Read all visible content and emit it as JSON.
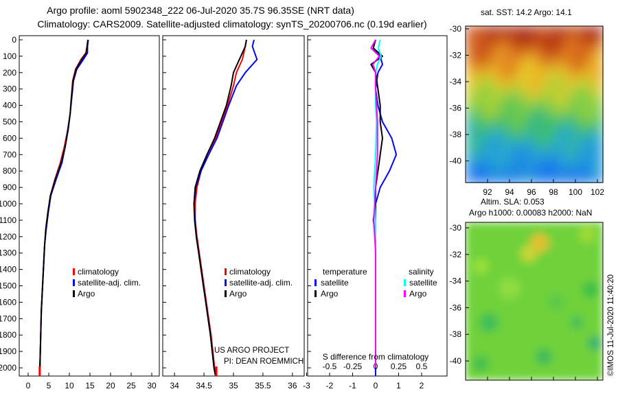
{
  "title": {
    "line1": "Argo profile: aoml 5902348_222 06-Jul-2020 35.7S 96.35SE (NRT data)",
    "line2": "Climatology: CARS2009. Satellite-adjusted climatology: synTS_20200706.nc (0.19d earlier)"
  },
  "colors": {
    "climatology": "#ff0000",
    "satellite_adj": "#0000ff",
    "argo": "#000000",
    "salinity": "#ff00ff",
    "sat_salinity": "#00ffff"
  },
  "chart_data": [
    {
      "type": "line",
      "name": "temperature",
      "xlim": [
        0,
        30
      ],
      "ylim": [
        2050,
        0
      ],
      "xticks": [
        "0",
        "5",
        "10",
        "15",
        "20",
        "25",
        "30"
      ],
      "xtick_values": [
        0,
        5,
        10,
        15,
        20,
        25,
        30
      ],
      "yticks": [
        "0",
        "100",
        "200",
        "300",
        "400",
        "500",
        "600",
        "700",
        "800",
        "900",
        "1000",
        "1100",
        "1200",
        "1300",
        "1400",
        "1500",
        "1600",
        "1700",
        "1800",
        "1900",
        "2000"
      ],
      "ytick_values": [
        0,
        100,
        200,
        300,
        400,
        500,
        600,
        700,
        800,
        900,
        1000,
        1100,
        1200,
        1300,
        1400,
        1500,
        1600,
        1700,
        1800,
        1900,
        2000
      ],
      "legend": [
        "climatology",
        "satellite-adj. clim.",
        "Argo"
      ],
      "series": [
        {
          "name": "climatology",
          "color": "#ff0000",
          "x": [
            14.5,
            14.3,
            14.0,
            12.8,
            11.5,
            10.8,
            10.5,
            10.2,
            9.6,
            8.8,
            7.8,
            6.5,
            5.4,
            4.8,
            4.3,
            4.0,
            3.8,
            3.6,
            3.4,
            3.2,
            3.1,
            3.0,
            2.9,
            2.8,
            2.8
          ],
          "depth": [
            0,
            40,
            80,
            120,
            180,
            250,
            350,
            450,
            550,
            650,
            750,
            850,
            950,
            1050,
            1150,
            1250,
            1350,
            1450,
            1550,
            1650,
            1750,
            1850,
            1950,
            2000,
            2050
          ]
        },
        {
          "name": "satellite-adj. clim.",
          "color": "#0000ff",
          "x": [
            14.6,
            14.4,
            14.4,
            13.4,
            11.8,
            11.0,
            10.6,
            10.2,
            9.6,
            9.0,
            8.2,
            6.8,
            5.5,
            4.9,
            4.4,
            4.0,
            3.8,
            3.6,
            3.4,
            3.2,
            3.1,
            3.0,
            2.9,
            2.8,
            2.8
          ],
          "depth": [
            0,
            40,
            80,
            120,
            180,
            250,
            350,
            450,
            550,
            650,
            750,
            850,
            950,
            1050,
            1150,
            1250,
            1350,
            1450,
            1550,
            1650,
            1750,
            1850,
            1950,
            2000,
            2050
          ]
        },
        {
          "name": "Argo",
          "color": "#000000",
          "x": [
            14.5,
            14.3,
            14.1,
            13.0,
            11.6,
            10.9,
            10.5,
            10.2,
            9.7,
            9.0,
            8.0,
            6.6,
            5.4,
            4.8,
            4.3,
            4.0,
            3.8,
            3.6,
            3.4,
            3.2,
            3.1,
            3.0,
            2.9,
            2.9
          ],
          "depth": [
            0,
            40,
            80,
            120,
            180,
            250,
            350,
            450,
            550,
            650,
            750,
            850,
            950,
            1050,
            1150,
            1250,
            1350,
            1450,
            1550,
            1650,
            1750,
            1850,
            1950,
            2000
          ]
        }
      ]
    },
    {
      "type": "line",
      "name": "salinity",
      "xlim": [
        33.8,
        36.2
      ],
      "ylim": [
        2050,
        0
      ],
      "xticks": [
        "34",
        "34.5",
        "35",
        "35.5",
        "36"
      ],
      "xtick_values": [
        34,
        34.5,
        35,
        35.5,
        36
      ],
      "legend": [
        "climatology",
        "satellite-adj. clim.",
        "Argo"
      ],
      "annotations": [
        "US ARGO PROJECT",
        "PI: DEAN ROEMMICH"
      ],
      "series": [
        {
          "name": "climatology",
          "color": "#ff0000",
          "x": [
            35.22,
            35.2,
            35.15,
            35.05,
            35.0,
            34.9,
            34.8,
            34.7,
            34.55,
            34.45,
            34.38,
            34.35,
            34.35,
            34.38,
            34.42,
            34.46,
            34.5,
            34.54,
            34.58,
            34.62,
            34.65,
            34.68,
            34.7,
            34.71
          ],
          "depth": [
            0,
            40,
            120,
            200,
            280,
            400,
            500,
            600,
            700,
            800,
            900,
            1000,
            1100,
            1200,
            1300,
            1400,
            1500,
            1600,
            1700,
            1800,
            1900,
            2000,
            2040,
            2050
          ]
        },
        {
          "name": "satellite-adj. clim.",
          "color": "#0000ff",
          "x": [
            35.35,
            35.32,
            35.4,
            35.2,
            35.05,
            34.92,
            34.82,
            34.72,
            34.58,
            34.45,
            34.36,
            34.33,
            34.35,
            34.37,
            34.41,
            34.45,
            34.49,
            34.53,
            34.57,
            34.61,
            34.64,
            34.67,
            34.69,
            34.7
          ],
          "depth": [
            0,
            40,
            120,
            200,
            280,
            400,
            500,
            600,
            700,
            800,
            900,
            1000,
            1100,
            1200,
            1300,
            1400,
            1500,
            1600,
            1700,
            1800,
            1900,
            2000,
            2040,
            2050
          ]
        },
        {
          "name": "Argo",
          "color": "#000000",
          "x": [
            35.22,
            35.2,
            35.1,
            35.0,
            34.96,
            34.88,
            34.78,
            34.68,
            34.55,
            34.43,
            34.35,
            34.33,
            34.34,
            34.37,
            34.41,
            34.45,
            34.49,
            34.53,
            34.57,
            34.61,
            34.64,
            34.67,
            34.69
          ],
          "depth": [
            0,
            40,
            120,
            200,
            280,
            400,
            500,
            600,
            700,
            800,
            900,
            1000,
            1100,
            1200,
            1300,
            1400,
            1500,
            1600,
            1700,
            1800,
            1900,
            2000,
            2040
          ]
        }
      ]
    },
    {
      "type": "line",
      "name": "difference from climatology",
      "xlim_T": [
        -3,
        3
      ],
      "xticks_T": [
        "-3",
        "-2",
        "-1",
        "0",
        "1",
        "2"
      ],
      "xtick_values_T": [
        -3,
        -2,
        -1,
        0,
        1,
        2
      ],
      "xticks_S": [
        "-0.5",
        "-0.25",
        "0",
        "0.25",
        "0.5"
      ],
      "xtick_values_S": [
        -0.5,
        -0.25,
        0,
        0.25,
        0.5
      ],
      "xlabel": "S difference from climatology",
      "legend_groups": {
        "temperature": [
          "satellite",
          "Argo"
        ],
        "salinity": [
          "satellite",
          "Argo"
        ]
      },
      "series": [
        {
          "name": "temperature satellite",
          "color": "#0000ff",
          "x": [
            0.0,
            -0.1,
            0.2,
            0.3,
            0.1,
            0.0,
            0.1,
            0.3,
            0.7,
            0.9,
            0.6,
            0.2,
            0.0,
            -0.1,
            0.0,
            0.0,
            0.0,
            0.0,
            0.0,
            0.0,
            0.0
          ],
          "depth": [
            0,
            50,
            100,
            150,
            200,
            300,
            400,
            500,
            600,
            700,
            800,
            900,
            1000,
            1100,
            1200,
            1400,
            1600,
            1800,
            1950,
            2000,
            2050
          ]
        },
        {
          "name": "temperature Argo",
          "color": "#000000",
          "x": [
            0.0,
            -0.1,
            0.3,
            -0.2,
            0.0,
            0.1,
            0.2,
            0.2,
            0.3,
            0.2,
            0.1,
            0.0,
            0.0,
            0.0,
            0.0,
            0.0
          ],
          "depth": [
            0,
            50,
            100,
            150,
            200,
            300,
            400,
            500,
            600,
            700,
            800,
            900,
            1000,
            1200,
            1600,
            2000
          ]
        },
        {
          "name": "salinity satellite",
          "color": "#00ffff",
          "x": [
            0.05,
            0.03,
            0.06,
            0.02,
            0.0,
            0.0,
            0.0,
            0.01,
            0.0,
            -0.02,
            0.0,
            0.0,
            0.0,
            0.0,
            0.0,
            0.0
          ],
          "depth": [
            0,
            50,
            100,
            150,
            200,
            300,
            400,
            500,
            700,
            900,
            1100,
            1300,
            1500,
            1700,
            1900,
            2000
          ]
        },
        {
          "name": "salinity Argo",
          "color": "#ff00ff",
          "x": [
            0.0,
            -0.05,
            0.04,
            -0.03,
            0.0,
            0.0,
            0.01,
            0.02,
            0.02,
            0.0,
            -0.02,
            0.0,
            0.0,
            0.0,
            0.0,
            0.0
          ],
          "depth": [
            0,
            50,
            100,
            150,
            200,
            300,
            400,
            500,
            700,
            900,
            1100,
            1300,
            1500,
            1700,
            1900,
            2000
          ]
        }
      ]
    },
    {
      "type": "heatmap",
      "name": "SST",
      "title": "sat. SST: 14.2 Argo: 14.1",
      "xticks": [
        "92",
        "94",
        "96",
        "98",
        "100",
        "102"
      ],
      "yticks": [
        "-30",
        "-32",
        "-34",
        "-36",
        "-38",
        "-40"
      ]
    },
    {
      "type": "heatmap",
      "name": "SLA",
      "title_line1": "Altim. SLA: 0.053",
      "title_line2": "Argo h1000: 0.00083 h2000: NaN",
      "yticks": [
        "-30",
        "-32",
        "-34",
        "-36",
        "-38",
        "-40"
      ]
    }
  ],
  "stamp": "©IMOS 11-Jul-2020 11:40:20"
}
